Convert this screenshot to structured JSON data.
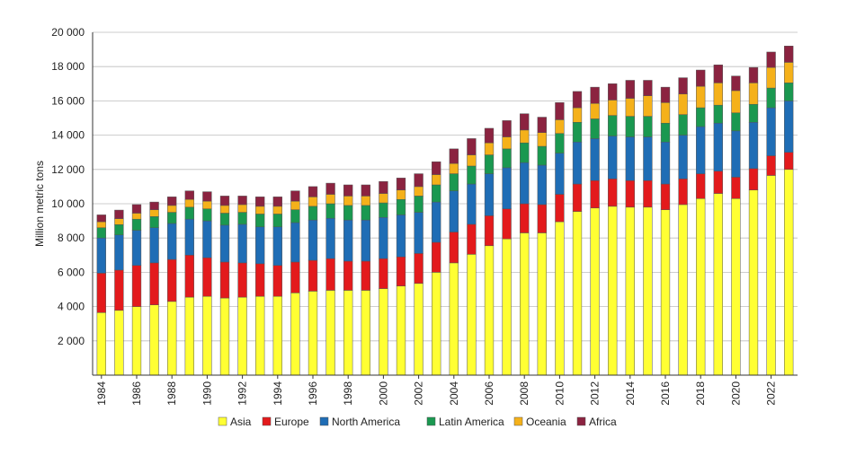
{
  "chart_data": {
    "type": "bar",
    "stacked": true,
    "ylabel": "Million metric tons",
    "ylim": [
      0,
      20000
    ],
    "yticks": [
      0,
      2000,
      4000,
      6000,
      8000,
      10000,
      12000,
      14000,
      16000,
      18000,
      20000
    ],
    "ytick_labels": [
      "",
      "2 000",
      "4 000",
      "6 000",
      "8 000",
      "10 000",
      "12 000",
      "14 000",
      "16 000",
      "18 000",
      "20 000"
    ],
    "grid": true,
    "legend": "bottom",
    "categories": [
      "1984",
      "1985",
      "1986",
      "1987",
      "1988",
      "1989",
      "1990",
      "1991",
      "1992",
      "1993",
      "1994",
      "1995",
      "1996",
      "1997",
      "1998",
      "1999",
      "2000",
      "2001",
      "2002",
      "2003",
      "2004",
      "2005",
      "2006",
      "2007",
      "2008",
      "2009",
      "2010",
      "2011",
      "2012",
      "2013",
      "2014",
      "2015",
      "2016",
      "2017",
      "2018",
      "2019",
      "2020",
      "2021",
      "2022",
      "2023"
    ],
    "xtick_labels": [
      "1984",
      "1986",
      "1988",
      "1990",
      "1992",
      "1994",
      "1996",
      "1998",
      "2000",
      "2002",
      "2004",
      "2006",
      "2008",
      "2010",
      "2012",
      "2014",
      "2016",
      "2018",
      "2020",
      "2022"
    ],
    "series": [
      {
        "name": "Asia",
        "color": "#ffff33",
        "values": [
          3650,
          3780,
          4000,
          4100,
          4300,
          4550,
          4600,
          4500,
          4550,
          4600,
          4600,
          4800,
          4900,
          4950,
          4950,
          4950,
          5050,
          5200,
          5350,
          6000,
          6550,
          7050,
          7550,
          7950,
          8300,
          8300,
          8950,
          9550,
          9750,
          9850,
          9800,
          9800,
          9650,
          9950,
          10300,
          10600,
          10300,
          10800,
          11650,
          12000
        ]
      },
      {
        "name": "Europe",
        "color": "#e31a1c",
        "values": [
          2300,
          2350,
          2400,
          2450,
          2450,
          2450,
          2250,
          2100,
          2000,
          1900,
          1800,
          1800,
          1800,
          1850,
          1700,
          1700,
          1750,
          1700,
          1750,
          1750,
          1800,
          1750,
          1750,
          1750,
          1700,
          1650,
          1600,
          1600,
          1600,
          1600,
          1550,
          1550,
          1500,
          1500,
          1450,
          1300,
          1250,
          1250,
          1150,
          1000
        ]
      },
      {
        "name": "North America",
        "color": "#1f6db5",
        "values": [
          2050,
          2050,
          2050,
          2050,
          2100,
          2100,
          2150,
          2150,
          2250,
          2150,
          2250,
          2300,
          2350,
          2350,
          2400,
          2400,
          2400,
          2450,
          2400,
          2350,
          2400,
          2350,
          2450,
          2400,
          2400,
          2300,
          2400,
          2450,
          2450,
          2500,
          2550,
          2550,
          2450,
          2550,
          2750,
          2800,
          2700,
          2700,
          2800,
          3000
        ]
      },
      {
        "name": "Latin America",
        "color": "#1a9850",
        "values": [
          600,
          600,
          650,
          650,
          650,
          700,
          700,
          700,
          700,
          750,
          750,
          750,
          800,
          850,
          850,
          850,
          850,
          900,
          950,
          1000,
          1000,
          1050,
          1100,
          1100,
          1150,
          1100,
          1150,
          1150,
          1150,
          1200,
          1200,
          1200,
          1100,
          1200,
          1100,
          1050,
          1050,
          1050,
          1150,
          1050
        ]
      },
      {
        "name": "Oceania",
        "color": "#f5b11a",
        "values": [
          350,
          350,
          350,
          400,
          400,
          450,
          450,
          450,
          450,
          450,
          450,
          500,
          550,
          550,
          550,
          550,
          550,
          550,
          550,
          600,
          600,
          650,
          700,
          700,
          750,
          800,
          800,
          850,
          900,
          900,
          1050,
          1200,
          1200,
          1200,
          1250,
          1300,
          1300,
          1250,
          1200,
          1200
        ]
      },
      {
        "name": "Africa",
        "color": "#8b2340",
        "values": [
          400,
          500,
          500,
          450,
          500,
          500,
          550,
          550,
          500,
          550,
          550,
          600,
          600,
          650,
          650,
          650,
          700,
          700,
          750,
          750,
          850,
          950,
          850,
          950,
          950,
          900,
          1000,
          950,
          950,
          950,
          1050,
          900,
          900,
          950,
          950,
          1050,
          850,
          900,
          900,
          950
        ]
      }
    ]
  }
}
